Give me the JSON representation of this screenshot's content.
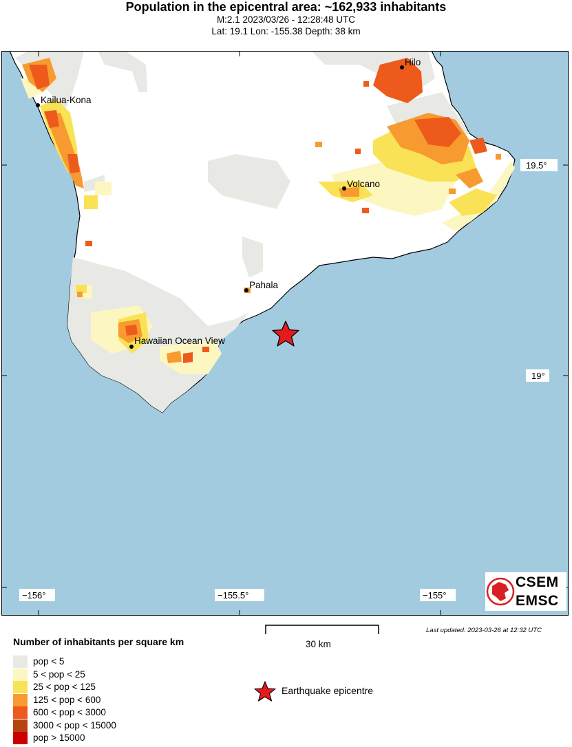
{
  "header": {
    "title": "Population in the epicentral area: ~162,933 inhabitants",
    "line1": "M:2.1 2023/03/26 - 12:28:48 UTC",
    "line2": "Lat: 19.1 Lon: -155.38 Depth: 38 km"
  },
  "map": {
    "colors": {
      "ocean": "#a3cbe0",
      "land": "#ffffff",
      "pop_lt5": "#e8e8e4",
      "pop_5_25": "#fcf6c0",
      "pop_25_125": "#f9e255",
      "pop_125_600": "#f79b30",
      "pop_600_3000": "#ee5a1c",
      "pop_3000_15000": "#b54412",
      "pop_gt15000": "#cc0000",
      "epicenter": "#e41a1c"
    },
    "lat_labels": [
      "19.5°",
      "19°"
    ],
    "lon_labels": [
      "−156°",
      "−155.5°",
      "−155°"
    ],
    "cities": [
      {
        "name": "Hilo"
      },
      {
        "name": "Kailua-Kona"
      },
      {
        "name": "Volcano"
      },
      {
        "name": "Pahala"
      },
      {
        "name": "Hawaiian Ocean View"
      }
    ]
  },
  "scale": {
    "label": "30 km"
  },
  "updated": "Last updated: 2023-03-26 at 12:32 UTC",
  "legend": {
    "title": "Number of inhabitants per square km",
    "items": [
      {
        "label": "pop < 5",
        "color": "#e8e8e4"
      },
      {
        "label": "5 < pop < 25",
        "color": "#fcf6c0"
      },
      {
        "label": "25 < pop < 125",
        "color": "#f9e255"
      },
      {
        "label": "125 < pop < 600",
        "color": "#f79b30"
      },
      {
        "label": "600 < pop < 3000",
        "color": "#ee5a1c"
      },
      {
        "label": "3000 < pop < 15000",
        "color": "#b54412"
      },
      {
        "label": "pop > 15000",
        "color": "#cc0000"
      }
    ],
    "epicenter_label": "Earthquake epicentre"
  },
  "logo": {
    "line1": "CSEM",
    "line2": "EMSC"
  }
}
